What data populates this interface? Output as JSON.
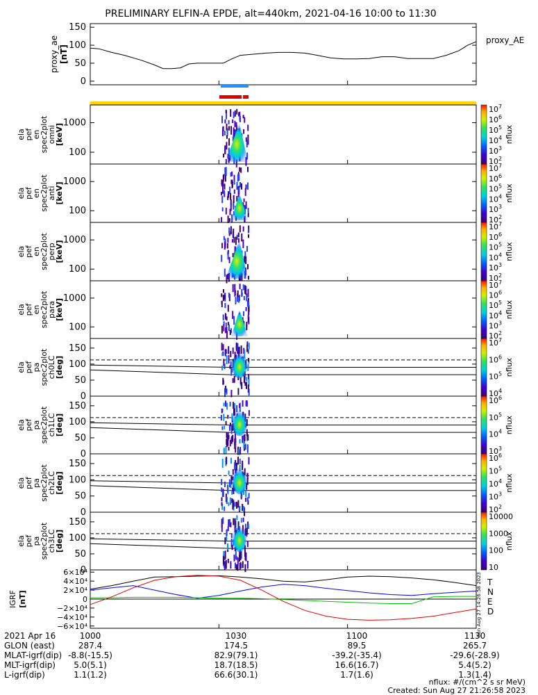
{
  "title": "PRELIMINARY ELFIN-A EPDE, alt=440km, 2021-04-16 10:00 to 11:30",
  "colors": {
    "bar_yellow": "#ffd400",
    "bar_blue": "#1e90ff",
    "bar_red": "#e00000",
    "bx_black": "#000000",
    "by_blue": "#0000ff",
    "bz_green": "#00c000",
    "bd_red": "#e00000"
  },
  "chart_data": [
    {
      "type": "line",
      "panel": "proxy_ae",
      "ylabel": "proxy_ae [nT]",
      "legend": "proxy_AE",
      "ylim": [
        -10,
        160
      ],
      "yticks": [
        "0",
        "50",
        "100",
        "150"
      ],
      "x": [
        0,
        2,
        5,
        8,
        12,
        15,
        17,
        19,
        21,
        23,
        25,
        27,
        29,
        31,
        33,
        35,
        38,
        41,
        44,
        47,
        50,
        53,
        56,
        59,
        62,
        65,
        68,
        71,
        74,
        77,
        80,
        83,
        86,
        88,
        90
      ],
      "values": [
        92,
        90,
        80,
        72,
        58,
        45,
        35,
        35,
        37,
        48,
        50,
        50,
        50,
        50,
        62,
        72,
        75,
        78,
        80,
        80,
        78,
        72,
        65,
        62,
        62,
        63,
        68,
        68,
        63,
        63,
        63,
        72,
        85,
        100,
        110
      ]
    },
    {
      "type": "heatmap",
      "panel": "omni",
      "ylabel": "ela pef en spec2plot omni [keV]",
      "yticks": [
        "100",
        "1000"
      ],
      "cbar_label": "nflux",
      "cbar_ticks": [
        "10^7",
        "10^6",
        "10^5",
        "10^4",
        "10^3",
        "10^2"
      ]
    },
    {
      "type": "heatmap",
      "panel": "anti",
      "ylabel": "ela pef en spec2plot anti [keV]",
      "yticks": [
        "100",
        "1000"
      ],
      "cbar_label": "nflux",
      "cbar_ticks": [
        "10^7",
        "10^6",
        "10^5",
        "10^4",
        "10^3",
        "10^2"
      ]
    },
    {
      "type": "heatmap",
      "panel": "perp",
      "ylabel": "ela pef en spec2plot perp [keV]",
      "yticks": [
        "100",
        "1000"
      ],
      "cbar_label": "nflux",
      "cbar_ticks": [
        "10^7",
        "10^6",
        "10^5",
        "10^4",
        "10^3",
        "10^2"
      ]
    },
    {
      "type": "heatmap",
      "panel": "para",
      "ylabel": "ela pef en spec2plot para [keV]",
      "yticks": [
        "100",
        "1000"
      ],
      "cbar_label": "nflux",
      "cbar_ticks": [
        "10^7",
        "10^6",
        "10^5",
        "10^4",
        "10^3",
        "10^2"
      ]
    },
    {
      "type": "heatmap",
      "panel": "ch0LC",
      "ylabel": "ela pef pa spec2plot ch0LC [deg]",
      "ylim": [
        0,
        180
      ],
      "yticks": [
        "0",
        "50",
        "100",
        "150"
      ],
      "cbar_label": "nflux",
      "cbar_ticks": [
        "10^7",
        "10^6",
        "10^5",
        "10^4"
      ]
    },
    {
      "type": "heatmap",
      "panel": "ch1LC",
      "ylabel": "ela pef pa spec2plot ch1LC [deg]",
      "ylim": [
        0,
        180
      ],
      "yticks": [
        "0",
        "50",
        "100",
        "150"
      ],
      "cbar_label": "nflux",
      "cbar_ticks": [
        "10^6",
        "10^5",
        "10^4",
        "10^3"
      ]
    },
    {
      "type": "heatmap",
      "panel": "ch2LC",
      "ylabel": "ela pef pa spec2plot ch2LC [deg]",
      "ylim": [
        0,
        180
      ],
      "yticks": [
        "0",
        "50",
        "100",
        "150"
      ],
      "cbar_label": "nflux",
      "cbar_ticks": [
        "10^6",
        "10^5",
        "10^4",
        "10^3",
        "10^2"
      ]
    },
    {
      "type": "heatmap",
      "panel": "ch3LC",
      "ylabel": "ela pef pa spec2plot ch3LC [deg]",
      "ylim": [
        0,
        180
      ],
      "yticks": [
        "0",
        "50",
        "100",
        "150"
      ],
      "cbar_label": "nflux",
      "cbar_ticks": [
        "10000",
        "1000",
        "100",
        "10"
      ]
    },
    {
      "type": "line",
      "panel": "igrf",
      "ylabel": "IGRF [nT]",
      "ylim": [
        -65000,
        65000
      ],
      "yticks": [
        "6×10⁴",
        "4×10⁴",
        "2×10⁴",
        "0",
        "−2×10⁴",
        "−4×10⁴",
        "−6×10⁴"
      ],
      "x": [
        0,
        5,
        10,
        15,
        20,
        25,
        30,
        35,
        40,
        45,
        50,
        55,
        60,
        65,
        70,
        75,
        80,
        85,
        90
      ],
      "series": [
        {
          "name": "T",
          "values": [
            22000,
            30000,
            40000,
            49000,
            50000,
            51000,
            52000,
            49000,
            45000,
            40000,
            38000,
            43000,
            49000,
            51000,
            50000,
            47000,
            43000,
            37000,
            30000
          ]
        },
        {
          "name": "N",
          "values": [
            20000,
            25000,
            30000,
            20000,
            10000,
            2000,
            8000,
            18000,
            27000,
            33000,
            30000,
            24000,
            19000,
            14000,
            10000,
            8000,
            12000,
            15000,
            18000
          ]
        },
        {
          "name": "E",
          "values": [
            3000,
            3000,
            4000,
            4000,
            4000,
            3000,
            2000,
            2000,
            1000,
            -1000,
            -3000,
            -5000,
            -7000,
            -9000,
            -10000,
            -10000,
            5000,
            6000,
            6000
          ]
        },
        {
          "name": "D",
          "values": [
            -12000,
            5000,
            25000,
            42000,
            50000,
            53000,
            51000,
            42000,
            20000,
            -5000,
            -25000,
            -38000,
            -45000,
            -47000,
            -46000,
            -43000,
            -38000,
            -30000,
            -22000
          ]
        }
      ]
    }
  ],
  "x_axis": {
    "ticks": [
      "1000",
      "1030",
      "1100",
      "1130"
    ]
  },
  "mlt_lines": {
    "dashed": 113,
    "upper": 90,
    "lower": 67
  },
  "footer": {
    "rows": [
      {
        "label": "2021 Apr 16",
        "v": [
          "1000",
          "1030",
          "1100",
          "1130"
        ]
      },
      {
        "label": "GLON (east)",
        "v": [
          "287.4",
          "174.5",
          "89.5",
          "265.7"
        ]
      },
      {
        "label": "MLAT-igrf(dip)",
        "v": [
          "-8.8(-15.5)",
          "82.9(79.1)",
          "-39.2(-35.4)",
          "-29.6(-28.9)"
        ]
      },
      {
        "label": "MLT-igrf(dip)",
        "v": [
          "5.0(5.1)",
          "18.7(18.5)",
          "16.6(16.7)",
          "5.4(5.2)"
        ]
      },
      {
        "label": "L-igrf(dip)",
        "v": [
          "1.1(1.2)",
          "66.6(30.1)",
          "1.7(1.6)",
          "1.3(1.4)"
        ]
      }
    ],
    "units": "nflux: #/(cm^2 s sr MeV)",
    "created": "Created: Sun Aug 27 21:26:58 2023",
    "side_stamp": "Sun Aug 27 14:26:58 2023"
  }
}
